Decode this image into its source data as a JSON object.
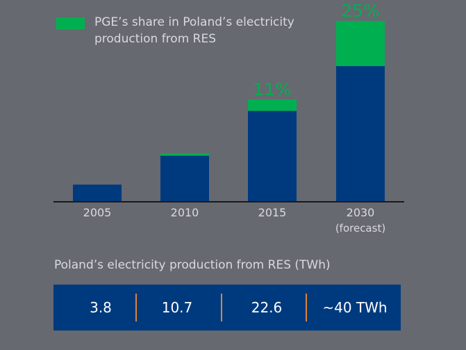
{
  "legend": {
    "share_label": "PGE’s share in Poland’s electricity production from RES"
  },
  "colors": {
    "background": "#666970",
    "total_bar": "#003a7e",
    "pge_share": "#00b050",
    "separator": "#e0823a",
    "text": "#d9dadc"
  },
  "chart_data": {
    "type": "bar",
    "stacked": true,
    "categories": [
      "2005",
      "2010",
      "2015",
      "2030"
    ],
    "category_sublabels": [
      "",
      "",
      "",
      "(forecast)"
    ],
    "series": [
      {
        "values": [
          3.8,
          10.2,
          20.1,
          30.0
        ]
      },
      {
        "name": "PGE’s share in Poland’s electricity production from RES",
        "values": [
          0.0,
          0.5,
          2.5,
          10.0
        ]
      }
    ],
    "annotations": [
      "",
      "",
      "11%",
      "25%"
    ],
    "ylim": [
      0,
      40
    ],
    "grid": false,
    "legend_position": "top-left"
  },
  "summary": {
    "title": "Poland’s electricity production from RES (TWh)",
    "values": [
      "3.8",
      "10.7",
      "22.6",
      "~40 TWh"
    ]
  }
}
